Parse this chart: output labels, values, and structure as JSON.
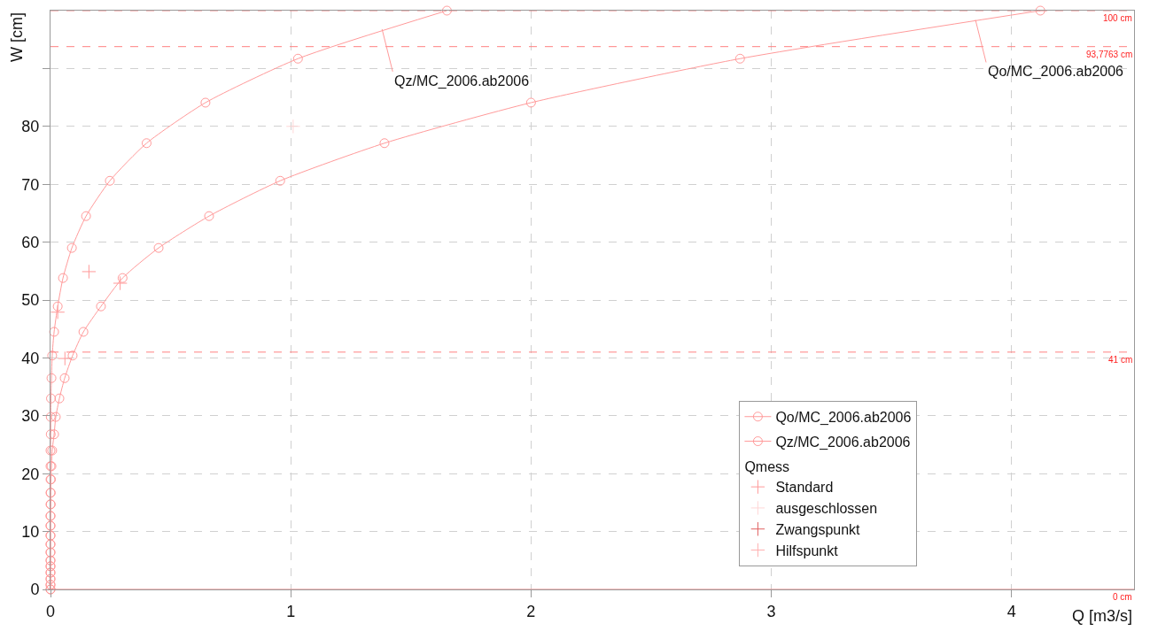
{
  "chart_data": {
    "type": "line",
    "xlabel": "Q [m3/s]",
    "ylabel": "W [cm]",
    "legend_title": "Qmess",
    "xlim": [
      0,
      4.51
    ],
    "xticks": [
      0,
      1,
      2,
      3,
      4
    ],
    "ylim": [
      0,
      100
    ],
    "yticks": [
      0,
      10,
      20,
      30,
      40,
      50,
      60,
      70,
      80,
      {
        "value": 90,
        "label": null
      }
    ],
    "grid": true,
    "legend": "bottom right",
    "marker": "circle",
    "line_style": "solid",
    "series": [
      {
        "name": "Qo/MC_2006.ab2006",
        "color": "#ff9a9a",
        "x": [
          4.12,
          2.87,
          2.0,
          1.39,
          0.956,
          0.66,
          0.45,
          0.3,
          0.21,
          0.137,
          0.092,
          0.059,
          0.037,
          0.022,
          0.015,
          0.007,
          0.004,
          0.002,
          0.001,
          0.001,
          0,
          0,
          0,
          0,
          0,
          0,
          0,
          0,
          0,
          0,
          0
        ],
        "values": [
          100,
          91.7,
          84.1,
          77.1,
          70.6,
          64.5,
          59.0,
          53.8,
          48.9,
          44.5,
          40.4,
          36.5,
          33.0,
          29.8,
          26.8,
          24.0,
          21.3,
          19.0,
          16.7,
          14.7,
          12.7,
          11.0,
          9.3,
          7.8,
          6.4,
          5.0,
          4.0,
          2.9,
          1.8,
          0.8,
          0
        ]
      },
      {
        "name": "Qz/MC_2006.ab2006",
        "color": "#ff9a9a",
        "x": [
          1.65,
          1.03,
          0.645,
          0.4,
          0.247,
          0.148,
          0.089,
          0.052,
          0.03,
          0.015,
          0.007,
          0.004,
          0.002,
          0.001,
          0.001,
          0,
          0,
          0,
          0,
          0,
          0,
          0,
          0,
          0,
          0,
          0,
          0,
          0,
          0,
          0,
          0
        ],
        "values": [
          100,
          91.7,
          84.1,
          77.1,
          70.6,
          64.5,
          59.0,
          53.8,
          48.9,
          44.5,
          40.4,
          36.5,
          33.0,
          29.8,
          26.8,
          24.0,
          21.3,
          19.0,
          16.7,
          14.7,
          12.7,
          11.0,
          9.3,
          7.8,
          6.4,
          5.0,
          4.0,
          2.9,
          1.8,
          0.8,
          0
        ]
      },
      {
        "name": "Standard",
        "type": "scatter",
        "marker": "cross",
        "color": "#ff9a9a",
        "x": [
          0.29,
          0.16,
          0.03,
          0.06
        ],
        "values": [
          52.9,
          54.9,
          47.9,
          39.9
        ]
      },
      {
        "name": "ausgeschlossen",
        "type": "scatter",
        "marker": "cross",
        "color": "#ffd6d6",
        "x": [
          1.01
        ],
        "values": [
          80
        ]
      },
      {
        "name": "Zwangspunkt",
        "type": "scatter",
        "marker": "cross",
        "color": "#e06060"
      },
      {
        "name": "Hilfspunkt",
        "type": "scatter",
        "marker": "cross",
        "color": "#ffb0b0"
      }
    ],
    "ref_lines": [
      {
        "axis": "y",
        "value": 100,
        "label": "100 cm",
        "color": "#ff8080",
        "line_style": "dashed"
      },
      {
        "axis": "y",
        "value": 93.78,
        "label": "93,7763 cm",
        "color": "#ff8080",
        "line_style": "dashed"
      },
      {
        "axis": "y",
        "value": 41,
        "label": "41 cm",
        "color": "#ff8080",
        "line_style": "dashed"
      },
      {
        "axis": "y",
        "value": 0,
        "label": "0 cm",
        "color": "#ff8080",
        "line_style": "solid"
      }
    ],
    "annotations": [
      {
        "text": "Qz/MC_2006.ab2006",
        "x": 1.38,
        "y": 96.8
      },
      {
        "text": "Qo/MC_2006.ab2006",
        "x": 3.85,
        "y": 98.4
      }
    ]
  }
}
